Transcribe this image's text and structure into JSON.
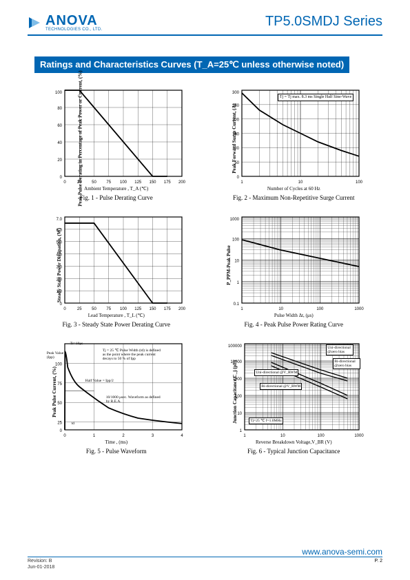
{
  "header": {
    "logo_name": "ANOVA",
    "logo_sub": "TECHNOLOGIES CO., LTD.",
    "series": "TP5.0SMDJ Series"
  },
  "section_title": "Ratings and Characteristics Curves (T_A=25℃ unless otherwise noted)",
  "colors": {
    "brand": "#0066b3",
    "chart_border": "#000000",
    "grid": "#000000",
    "background": "#ffffff"
  },
  "charts": {
    "fig1": {
      "type": "line",
      "caption": "Fig. 1 - Pulse Derating Curve",
      "xlabel": "Ambient Temperature , T_A  (℃)",
      "ylabel": "Peak Pulse Derating in Percentage of Peak Power or Current, (%)",
      "xlim": [
        0,
        200
      ],
      "xtick_step": 25,
      "ylim": [
        0,
        100
      ],
      "ytick_step": 20,
      "xscale": "linear",
      "yscale": "linear",
      "grid": true,
      "line_color": "#000000",
      "line_width": 1.8,
      "data": {
        "x": [
          0,
          25,
          150,
          175
        ],
        "y": [
          100,
          100,
          0,
          0
        ]
      }
    },
    "fig2": {
      "type": "line",
      "caption": "Fig. 2 - Maximum Non-Repetitive Surge Current",
      "xlabel": "Number of Cycles at 60 Hz",
      "ylabel": "Peak Forward Surge Current, (A)",
      "xlim": [
        1,
        100
      ],
      "xticks": [
        1,
        10,
        100
      ],
      "ylim": [
        0,
        300
      ],
      "ytick_step": 50,
      "xscale": "log",
      "yscale": "linear",
      "grid": true,
      "line_color": "#000000",
      "line_width": 1.8,
      "note": "Tj = Tj max.\n8.3 ms Single Half Sine-Wave",
      "data": {
        "x": [
          1,
          2,
          5,
          10,
          20,
          50,
          100
        ],
        "y": [
          290,
          230,
          180,
          150,
          120,
          90,
          70
        ]
      }
    },
    "fig3": {
      "type": "line",
      "caption": "Fig. 3 - Steady State Power Derating Curve",
      "xlabel": "Lead Temperature , T_L  (℃)",
      "ylabel": "Steady State Power Dissipation, (W)",
      "xlim": [
        0,
        200
      ],
      "xtick_step": 25,
      "ylim": [
        0,
        7.0
      ],
      "ytick_step": 1.0,
      "xscale": "linear",
      "yscale": "linear",
      "grid": true,
      "line_color": "#000000",
      "line_width": 1.8,
      "data": {
        "x": [
          0,
          25,
          50,
          150,
          175
        ],
        "y": [
          6.5,
          6.5,
          6.5,
          0,
          0
        ]
      }
    },
    "fig4": {
      "type": "line",
      "caption": "Fig. 4 - Peak Pulse Power Rating Curve",
      "xlabel": "Pulse Width Δt, (μs)",
      "ylabel": "P_PPM-Peak Pulse",
      "xlim": [
        1,
        1000
      ],
      "xticks": [
        1,
        10,
        100,
        1000
      ],
      "ylim": [
        0.1,
        1000
      ],
      "yticks": [
        0.1,
        1,
        10,
        100,
        1000
      ],
      "xscale": "log",
      "yscale": "log",
      "grid": true,
      "line_color": "#000000",
      "line_width": 1.8,
      "data": {
        "x": [
          1,
          10,
          100,
          1000
        ],
        "y": [
          60,
          20,
          8,
          3
        ]
      }
    },
    "fig5": {
      "type": "line",
      "caption": "Fig. 5 - Pulse Waveform",
      "xlabel": "Time , (ms)",
      "ylabel": "Peak Pulse Current, (%)",
      "xlim": [
        0,
        4
      ],
      "xtick_step": 1,
      "ylim": [
        0,
        110
      ],
      "ytick_step": 25,
      "xscale": "linear",
      "yscale": "linear",
      "grid": true,
      "line_color": "#000000",
      "line_width": 1.8,
      "annotations": [
        "Tr=10μs",
        "Peak Value (Ipp)",
        "Half Value = Ipp/2",
        "td",
        "Tj = 25 ℃\nPulse Width (td) is defined as the point where the peak current decays to 50 % of Ipp",
        "10/1000 μsec. Waveform as defined by R.E.A."
      ],
      "data": {
        "x": [
          0,
          0.01,
          0.1,
          0.5,
          1,
          1.5,
          2,
          2.5,
          3,
          3.5,
          4
        ],
        "y": [
          0,
          100,
          80,
          55,
          40,
          28,
          20,
          15,
          12,
          10,
          8
        ]
      }
    },
    "fig6": {
      "type": "line",
      "caption": "Fig. 6 - Typical Junction Capacitance",
      "xlabel": "Reverse Breakdown Voltage,V_BR (V)",
      "ylabel": "Junction Capacitance,C_j (pF)",
      "xlim": [
        1,
        1000
      ],
      "xticks": [
        1,
        10,
        100,
        1000
      ],
      "ylim": [
        1,
        100000
      ],
      "yticks": [
        1,
        10,
        100,
        1000,
        10000,
        100000
      ],
      "xscale": "log",
      "yscale": "log",
      "grid": true,
      "line_color": "#000000",
      "line_width": 1.3,
      "annotations": [
        "Uni-directional @zero bias",
        "Bi-directional @zero bias",
        "Uni-directional @V_RWM",
        "Bi-directional @V_RWM",
        "Tj=25 ℃\nf=1.0MHz"
      ],
      "series": [
        {
          "name": "uni_zero",
          "x": [
            5,
            100,
            500
          ],
          "y": [
            30000,
            3000,
            1000
          ]
        },
        {
          "name": "bi_zero",
          "x": [
            5,
            100,
            500
          ],
          "y": [
            20000,
            2000,
            700
          ]
        },
        {
          "name": "uni_vrwm",
          "x": [
            5,
            100,
            500
          ],
          "y": [
            8000,
            500,
            100
          ]
        },
        {
          "name": "bi_vrwm",
          "x": [
            5,
            100,
            500
          ],
          "y": [
            5000,
            300,
            60
          ]
        }
      ]
    }
  },
  "footer": {
    "revision": "Revision: B",
    "date": "Jun-01-2018",
    "url": "www.anova-semi.com",
    "page": "P. 2"
  }
}
